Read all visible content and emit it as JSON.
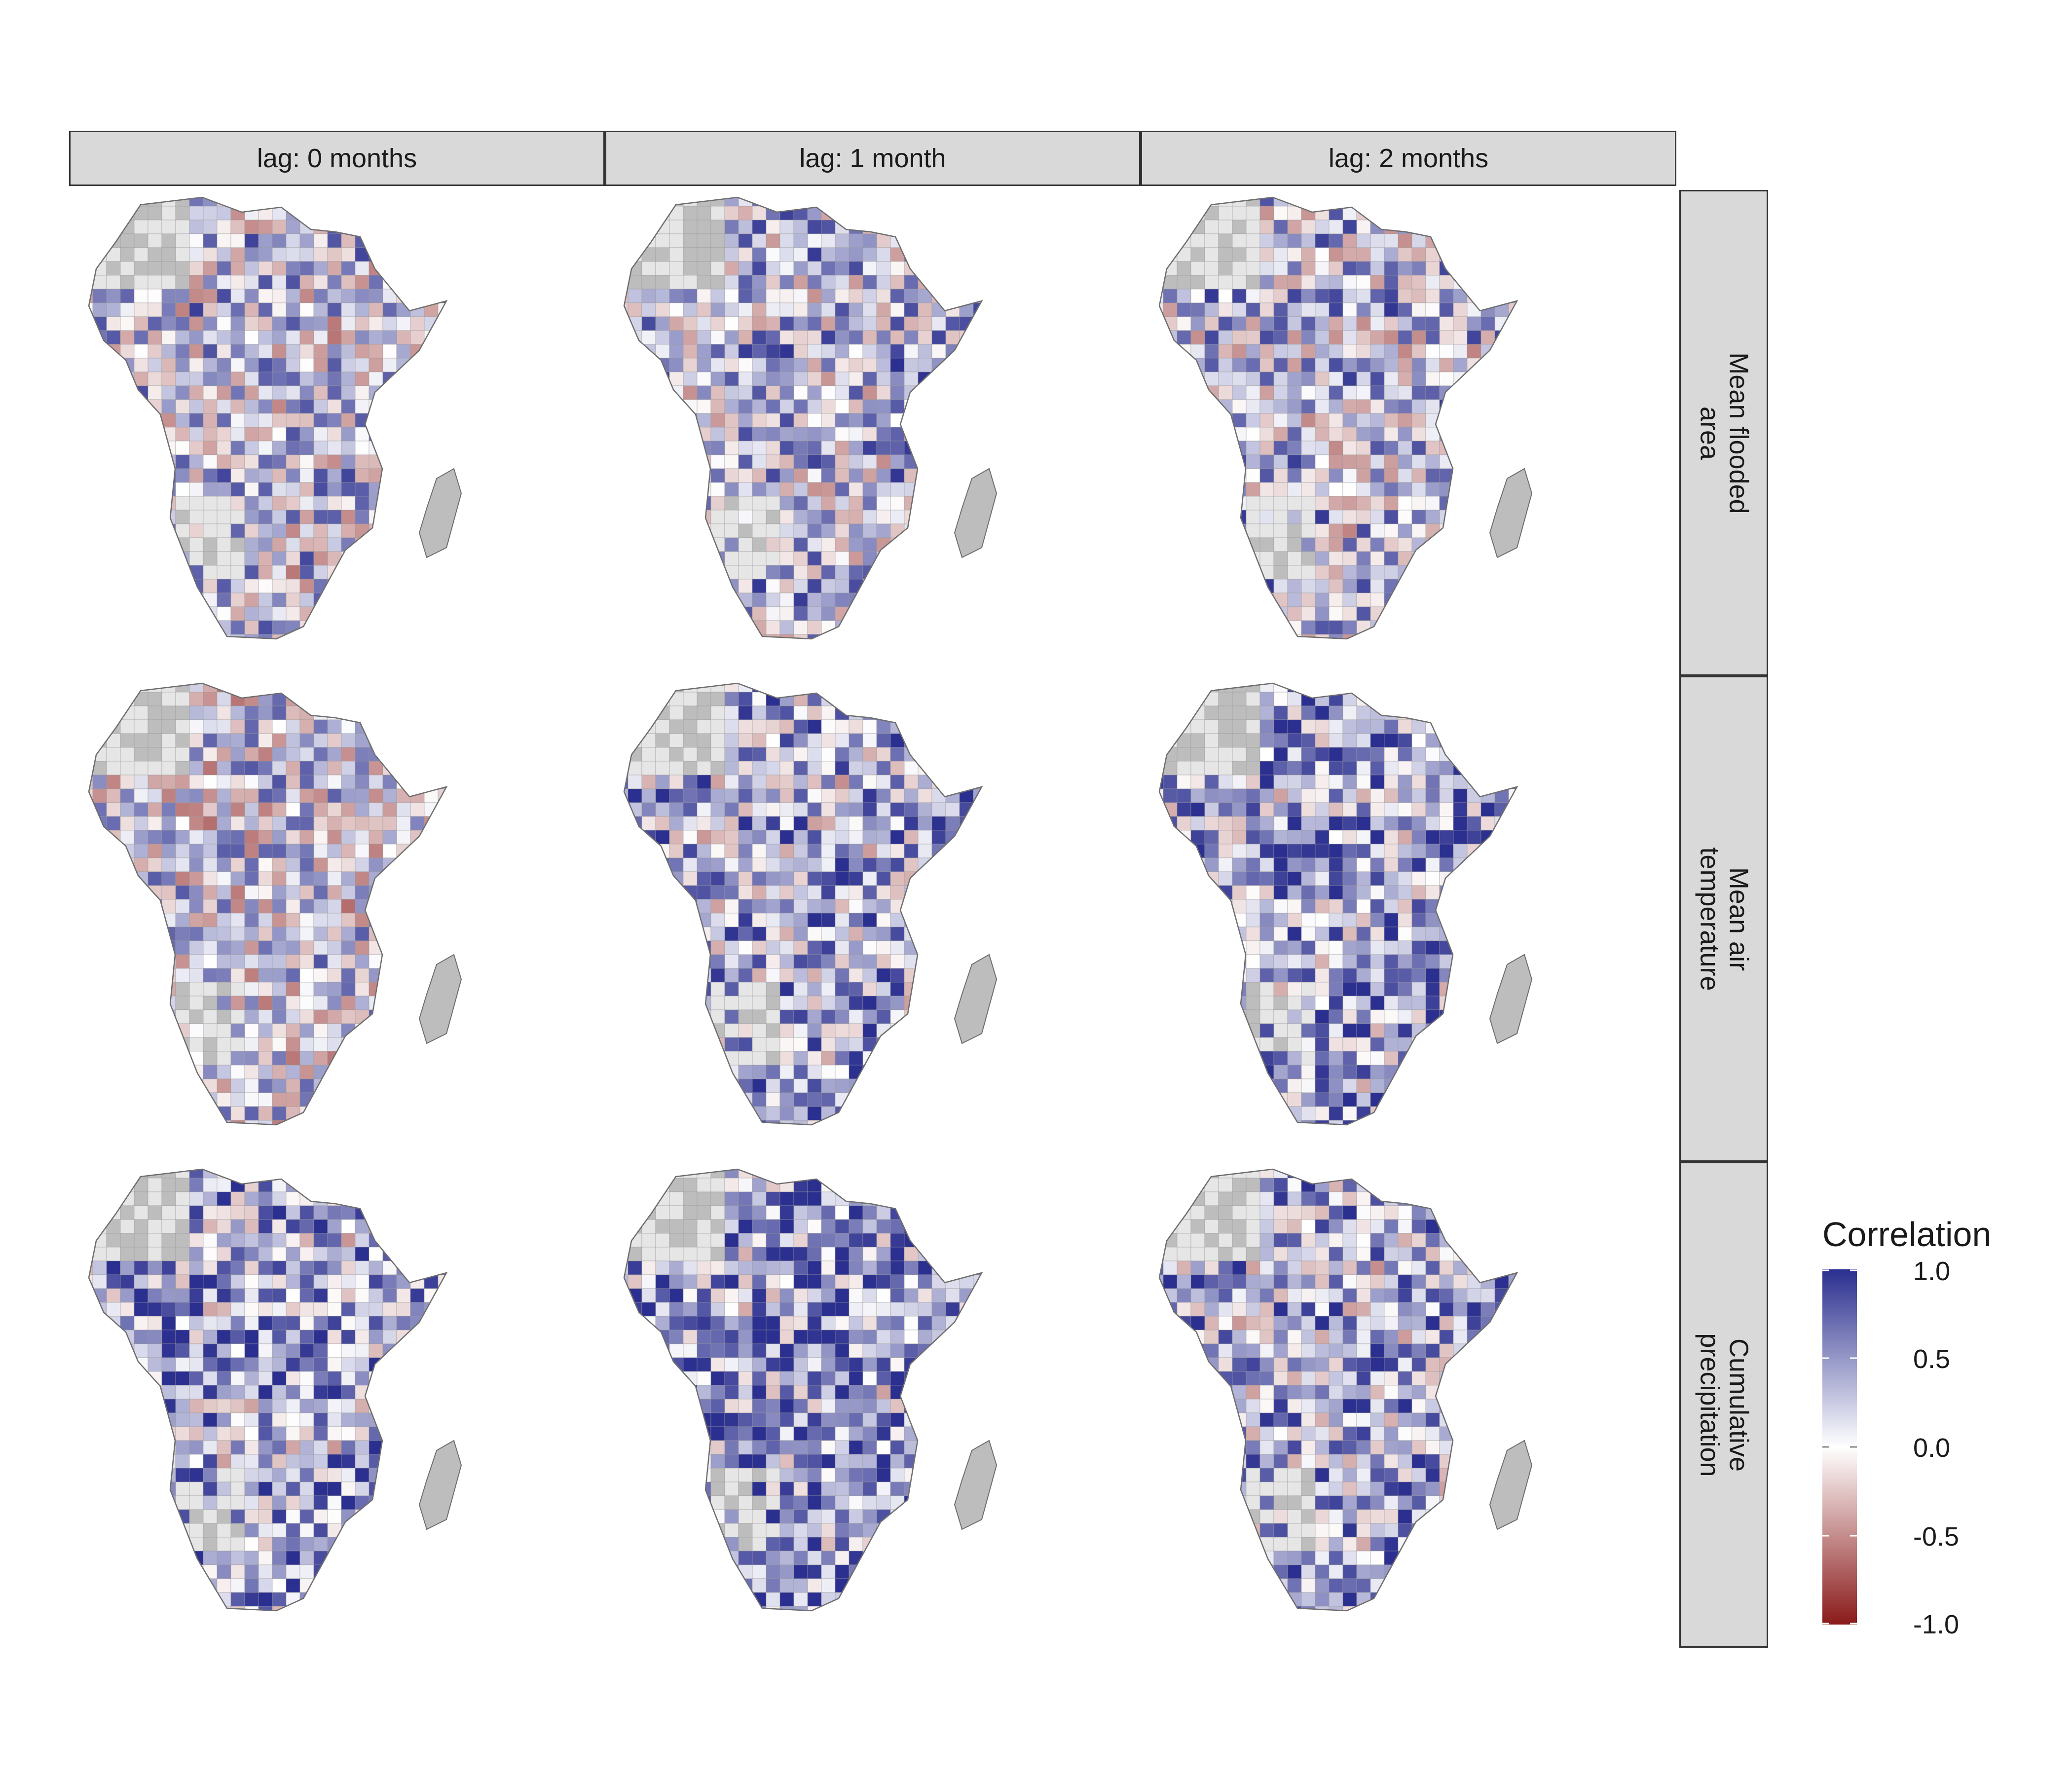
{
  "facets": {
    "columns": [
      "lag: 0 months",
      "lag: 1 month",
      "lag: 2 months"
    ],
    "rows": [
      "Mean flooded\narea",
      "Mean air\ntemperature",
      "Cumulative\nprecipitation"
    ]
  },
  "legend": {
    "title": "Correlation",
    "ticks": [
      "1.0",
      "0.5",
      "0.0",
      "-0.5",
      "-1.0"
    ],
    "colors": {
      "positive": "#2b2f8f",
      "mid": "#ffffff",
      "negative": "#8a1a1a"
    }
  },
  "map_colors": {
    "no_data_light": "#e6e6e6",
    "no_data_dark": "#bdbdbd",
    "border": "#6e6e6e"
  },
  "panel_tone": [
    [
      0.25,
      0.35,
      0.3
    ],
    [
      0.15,
      0.45,
      0.6
    ],
    [
      0.55,
      0.7,
      0.45
    ]
  ]
}
